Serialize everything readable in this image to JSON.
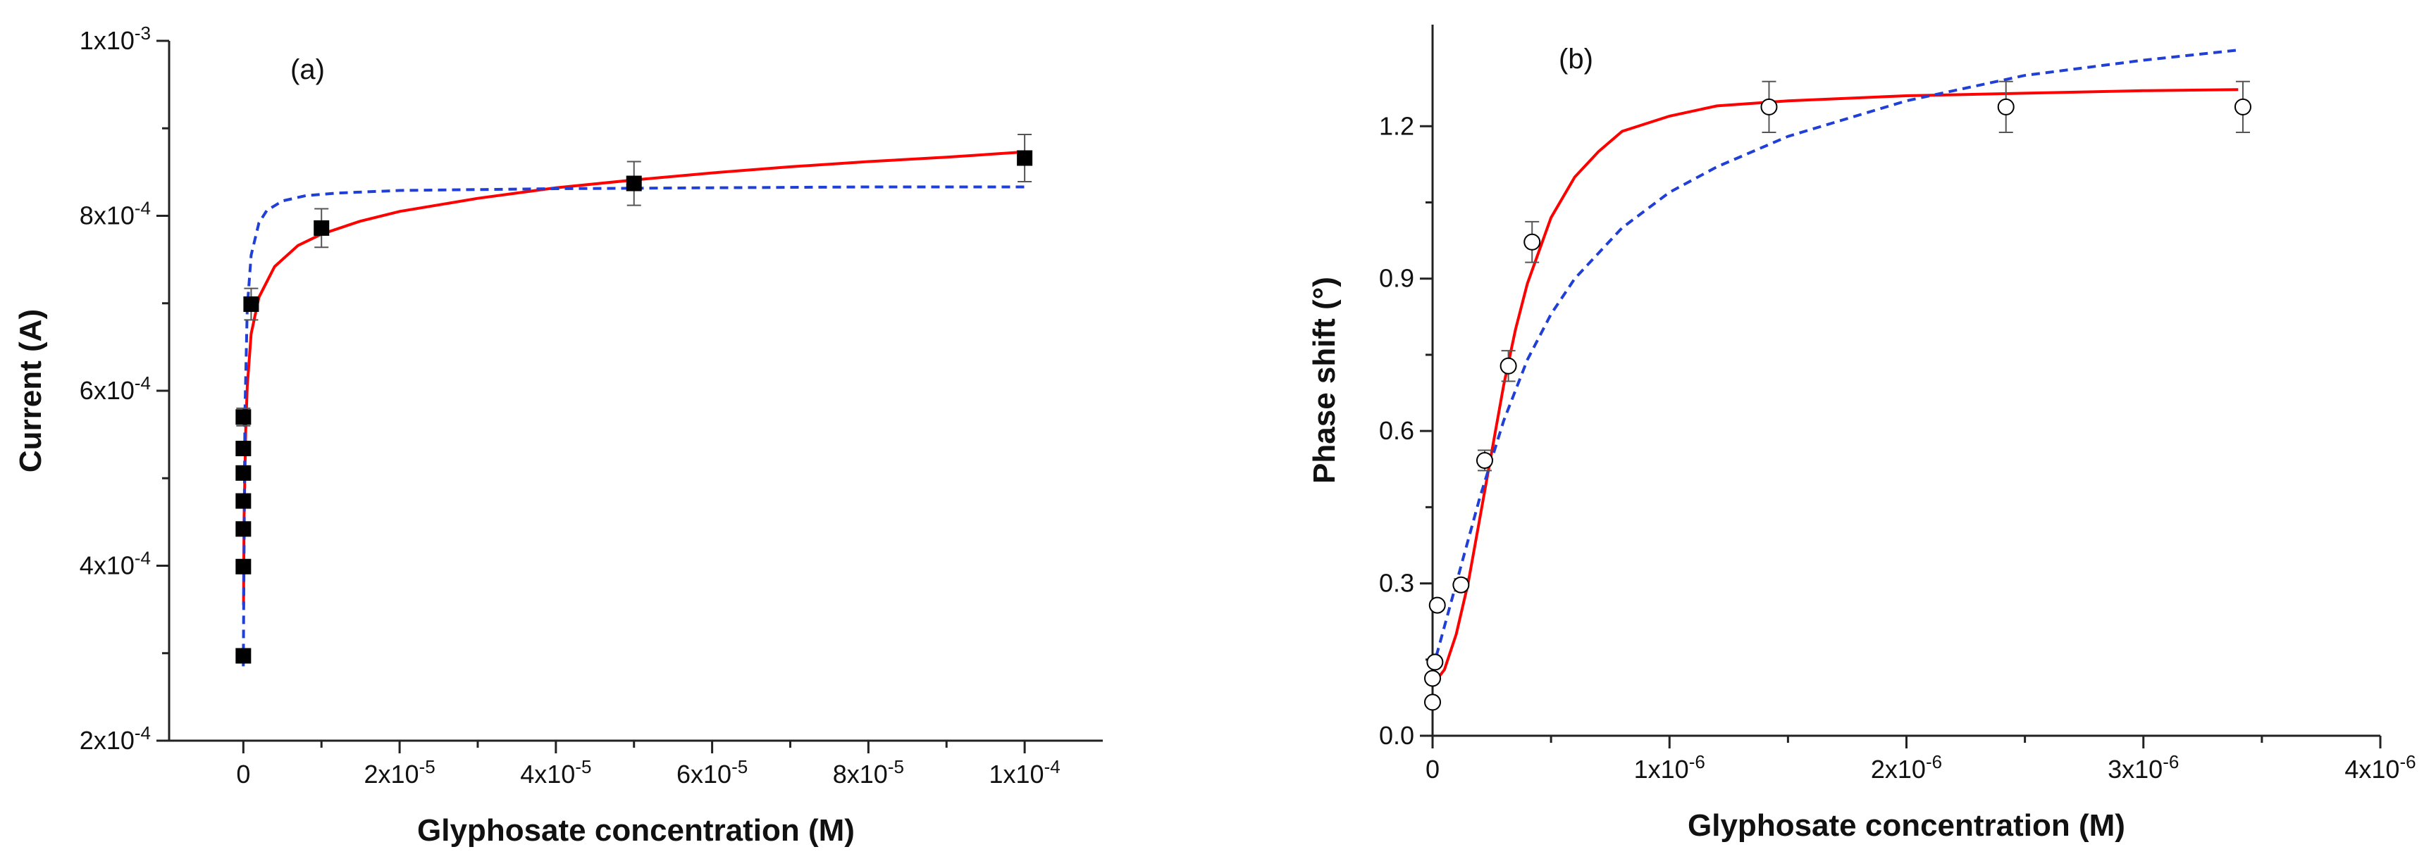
{
  "chart_data": [
    {
      "type": "scatter",
      "panel_label": "(a)",
      "xlabel": "Glyphosate concentration (M)",
      "ylabel": "Current (A)",
      "xlim": [
        -9.5e-06,
        0.00011
      ],
      "ylim": [
        0.0002,
        0.001
      ],
      "xticks": [
        {
          "value": 0,
          "label": "0"
        },
        {
          "value": 2e-05,
          "label": "2x10",
          "exp": "-5"
        },
        {
          "value": 4e-05,
          "label": "4x10",
          "exp": "-5"
        },
        {
          "value": 6e-05,
          "label": "6x10",
          "exp": "-5"
        },
        {
          "value": 8e-05,
          "label": "8x10",
          "exp": "-5"
        },
        {
          "value": 0.0001,
          "label": "1x10",
          "exp": "-4"
        }
      ],
      "yticks": [
        {
          "value": 0.0002,
          "label": "2x10",
          "exp": "-4"
        },
        {
          "value": 0.0004,
          "label": "4x10",
          "exp": "-4"
        },
        {
          "value": 0.0006,
          "label": "6x10",
          "exp": "-4"
        },
        {
          "value": 0.0008,
          "label": "8x10",
          "exp": "-4"
        },
        {
          "value": 0.001,
          "label": "1x10",
          "exp": "-3"
        }
      ],
      "marker": "filled-square",
      "marker_color": "#000000",
      "points": [
        {
          "x": 0,
          "y": 0.000297,
          "err": 5e-06
        },
        {
          "x": 0,
          "y": 0.000399,
          "err": 6e-06
        },
        {
          "x": 0,
          "y": 0.000442,
          "err": 6e-06
        },
        {
          "x": 0,
          "y": 0.000474,
          "err": 7e-06
        },
        {
          "x": 0,
          "y": 0.000506,
          "err": 7e-06
        },
        {
          "x": 0,
          "y": 0.000534,
          "err": 8e-06
        },
        {
          "x": 0,
          "y": 0.00057,
          "err": 1e-05
        },
        {
          "x": 1e-06,
          "y": 0.000699,
          "err": 1.8e-05
        },
        {
          "x": 1e-05,
          "y": 0.000786,
          "err": 2.2e-05
        },
        {
          "x": 5e-05,
          "y": 0.000837,
          "err": 2.5e-05
        },
        {
          "x": 0.0001,
          "y": 0.000866,
          "err": 2.7e-05
        }
      ],
      "fits": [
        {
          "color": "#ff0000",
          "style": "solid",
          "x": [
            2e-08,
            1e-07,
            3e-07,
            5e-07,
            1e-06,
            2e-06,
            4e-06,
            7e-06,
            1e-05,
            1.5e-05,
            2e-05,
            3e-05,
            4e-05,
            5e-05,
            6e-05,
            7e-05,
            8e-05,
            9e-05,
            0.0001
          ],
          "y": [
            0.000355,
            0.000455,
            0.000555,
            0.000605,
            0.000665,
            0.000707,
            0.000742,
            0.000766,
            0.000779,
            0.000794,
            0.000805,
            0.00082,
            0.000832,
            0.000841,
            0.000849,
            0.000856,
            0.000862,
            0.000867,
            0.000873
          ]
        },
        {
          "color": "#1f3fd6",
          "style": "dashed",
          "x": [
            0,
            2e-07,
            5e-07,
            1e-06,
            2e-06,
            3e-06,
            5e-06,
            8e-06,
            1.2e-05,
            2e-05,
            4e-05,
            6e-05,
            8e-05,
            0.0001
          ],
          "y": [
            0.000285,
            0.000575,
            0.000695,
            0.000755,
            0.000792,
            0.000806,
            0.000817,
            0.000823,
            0.000826,
            0.000829,
            0.000831,
            0.000832,
            0.000833,
            0.000833
          ]
        }
      ]
    },
    {
      "type": "scatter",
      "panel_label": "(b)",
      "xlabel": "Glyphosate concentration (M)",
      "ylabel": "Phase shift (°)",
      "xlim": [
        -0.0,
        4e-06
      ],
      "ylim": [
        0.0,
        1.4
      ],
      "xticks": [
        {
          "value": 0,
          "label": "0"
        },
        {
          "value": 1e-06,
          "label": "1x10",
          "exp": "-6"
        },
        {
          "value": 2e-06,
          "label": "2x10",
          "exp": "-6"
        },
        {
          "value": 3e-06,
          "label": "3x10",
          "exp": "-6"
        },
        {
          "value": 4e-06,
          "label": "4x10",
          "exp": "-6"
        }
      ],
      "yticks": [
        {
          "value": 0.0,
          "label": "0.0"
        },
        {
          "value": 0.3,
          "label": "0.3"
        },
        {
          "value": 0.6,
          "label": "0.6"
        },
        {
          "value": 0.9,
          "label": "0.9"
        },
        {
          "value": 1.2,
          "label": "1.2"
        }
      ],
      "marker": "open-circle",
      "marker_color": "#000000",
      "points": [
        {
          "x": 0,
          "y": 0.066,
          "err": 0.005
        },
        {
          "x": 0,
          "y": 0.113,
          "err": 0.006
        },
        {
          "x": 1e-08,
          "y": 0.145,
          "err": 0.008
        },
        {
          "x": 2e-08,
          "y": 0.257,
          "err": 0.008
        },
        {
          "x": 1.2e-07,
          "y": 0.297,
          "err": 0.012
        },
        {
          "x": 2.2e-07,
          "y": 0.542,
          "err": 0.02
        },
        {
          "x": 3.2e-07,
          "y": 0.728,
          "err": 0.03
        },
        {
          "x": 4.2e-07,
          "y": 0.972,
          "err": 0.04
        },
        {
          "x": 1.42e-06,
          "y": 1.238,
          "err": 0.05
        },
        {
          "x": 2.42e-06,
          "y": 1.238,
          "err": 0.05
        },
        {
          "x": 3.42e-06,
          "y": 1.238,
          "err": 0.05
        }
      ],
      "fits": [
        {
          "color": "#ff0000",
          "style": "solid",
          "x": [
            0,
            5e-08,
            1e-07,
            1.5e-07,
            2e-07,
            2.5e-07,
            3e-07,
            3.5e-07,
            4e-07,
            5e-07,
            6e-07,
            7e-07,
            8e-07,
            1e-06,
            1.2e-06,
            1.5e-06,
            2e-06,
            2.5e-06,
            3e-06,
            3.4e-06
          ],
          "y": [
            0.1,
            0.13,
            0.2,
            0.3,
            0.43,
            0.56,
            0.69,
            0.8,
            0.89,
            1.02,
            1.1,
            1.15,
            1.19,
            1.22,
            1.24,
            1.25,
            1.26,
            1.265,
            1.27,
            1.272
          ]
        },
        {
          "color": "#1f3fd6",
          "style": "dashed",
          "x": [
            0,
            1e-07,
            2e-07,
            3e-07,
            4e-07,
            5e-07,
            6e-07,
            8e-07,
            1e-06,
            1.2e-06,
            1.5e-06,
            2e-06,
            2.5e-06,
            3e-06,
            3.4e-06
          ],
          "y": [
            0.13,
            0.3,
            0.47,
            0.62,
            0.74,
            0.83,
            0.9,
            1.0,
            1.07,
            1.12,
            1.18,
            1.25,
            1.3,
            1.33,
            1.35
          ]
        }
      ]
    }
  ]
}
